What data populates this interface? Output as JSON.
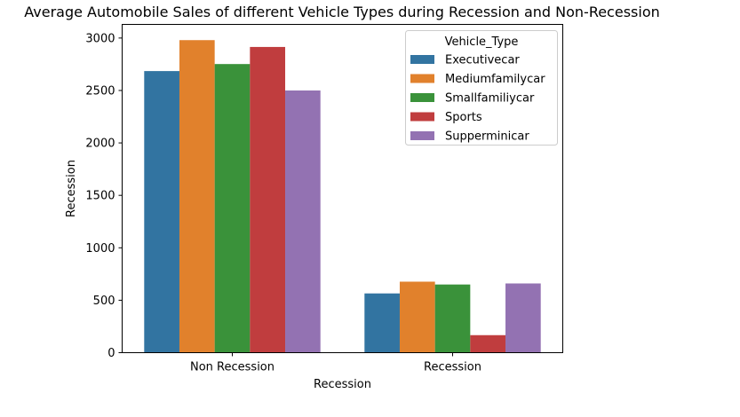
{
  "chart_data": {
    "type": "bar",
    "title": "Average Automobile Sales of different Vehicle Types during Recession and Non-Recession",
    "xlabel": "Recession",
    "ylabel": "Recession",
    "categories": [
      "Non Recession",
      "Recession"
    ],
    "ylim": [
      0,
      3130
    ],
    "yticks": [
      0,
      500,
      1000,
      1500,
      2000,
      2500,
      3000
    ],
    "grid": false,
    "legend": {
      "title": "Vehicle_Type",
      "placement": "top-right"
    },
    "series": [
      {
        "name": "Executivecar",
        "color": "#3274a1",
        "values": [
          2685,
          565
        ]
      },
      {
        "name": "Mediumfamilycar",
        "color": "#e1812c",
        "values": [
          2980,
          677
        ]
      },
      {
        "name": "Smallfamiliycar",
        "color": "#3a923a",
        "values": [
          2752,
          650
        ]
      },
      {
        "name": "Sports",
        "color": "#c03d3e",
        "values": [
          2915,
          167
        ]
      },
      {
        "name": "Supperminicar",
        "color": "#9372b2",
        "values": [
          2500,
          660
        ]
      }
    ]
  }
}
